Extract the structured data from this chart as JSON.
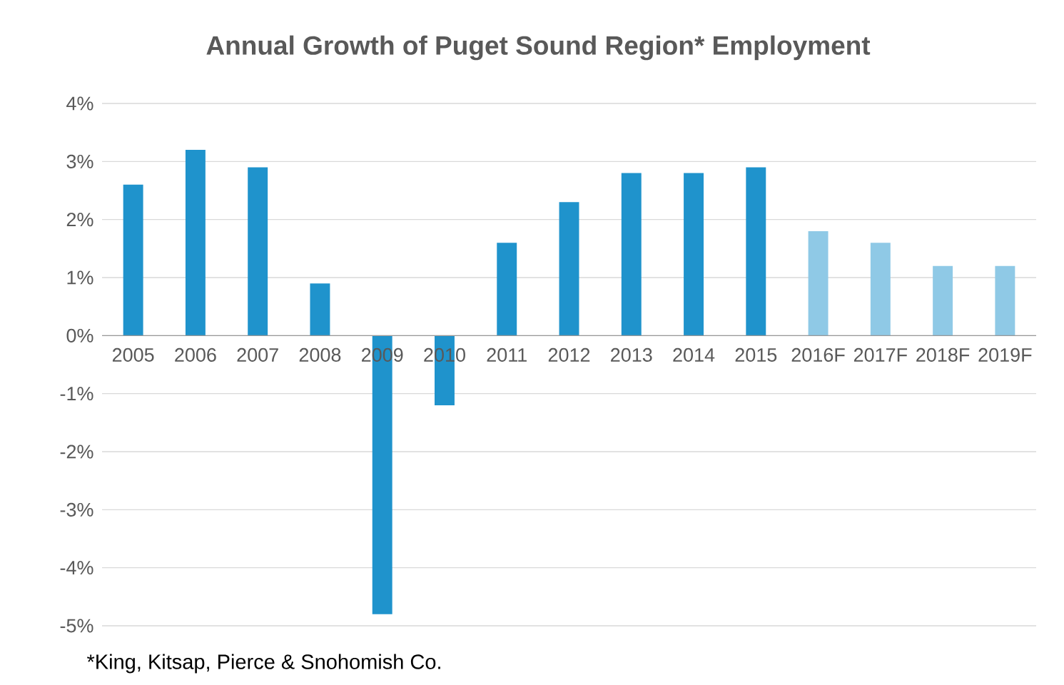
{
  "chart_data": {
    "type": "bar",
    "title": "Annual Growth of Puget Sound Region* Employment",
    "categories": [
      "2005",
      "2006",
      "2007",
      "2008",
      "2009",
      "2010",
      "2011",
      "2012",
      "2013",
      "2014",
      "2015",
      "2016F",
      "2017F",
      "2018F",
      "2019F"
    ],
    "series": [
      {
        "color": "#1f93cc",
        "values": [
          2.6,
          3.2,
          2.9,
          0.9,
          -4.8,
          -1.2,
          1.6,
          2.3,
          2.8,
          2.8,
          2.9,
          null,
          null,
          null,
          null
        ]
      },
      {
        "color": "#8fc9e6",
        "values": [
          null,
          null,
          null,
          null,
          null,
          null,
          null,
          null,
          null,
          null,
          null,
          1.8,
          1.6,
          1.2,
          1.2
        ]
      }
    ],
    "ylim": [
      -5,
      4
    ],
    "yticks": [
      {
        "value": -5,
        "label": "-5%"
      },
      {
        "value": -4,
        "label": "-4%"
      },
      {
        "value": -3,
        "label": "-3%"
      },
      {
        "value": -2,
        "label": "-2%"
      },
      {
        "value": -1,
        "label": "-1%"
      },
      {
        "value": 0,
        "label": "0%"
      },
      {
        "value": 1,
        "label": "1%"
      },
      {
        "value": 2,
        "label": "2%"
      },
      {
        "value": 3,
        "label": "3%"
      },
      {
        "value": 4,
        "label": "4%"
      }
    ],
    "grid": "y",
    "annotations": [
      "*King, Kitsap, Pierce & Snohomish Co."
    ]
  }
}
